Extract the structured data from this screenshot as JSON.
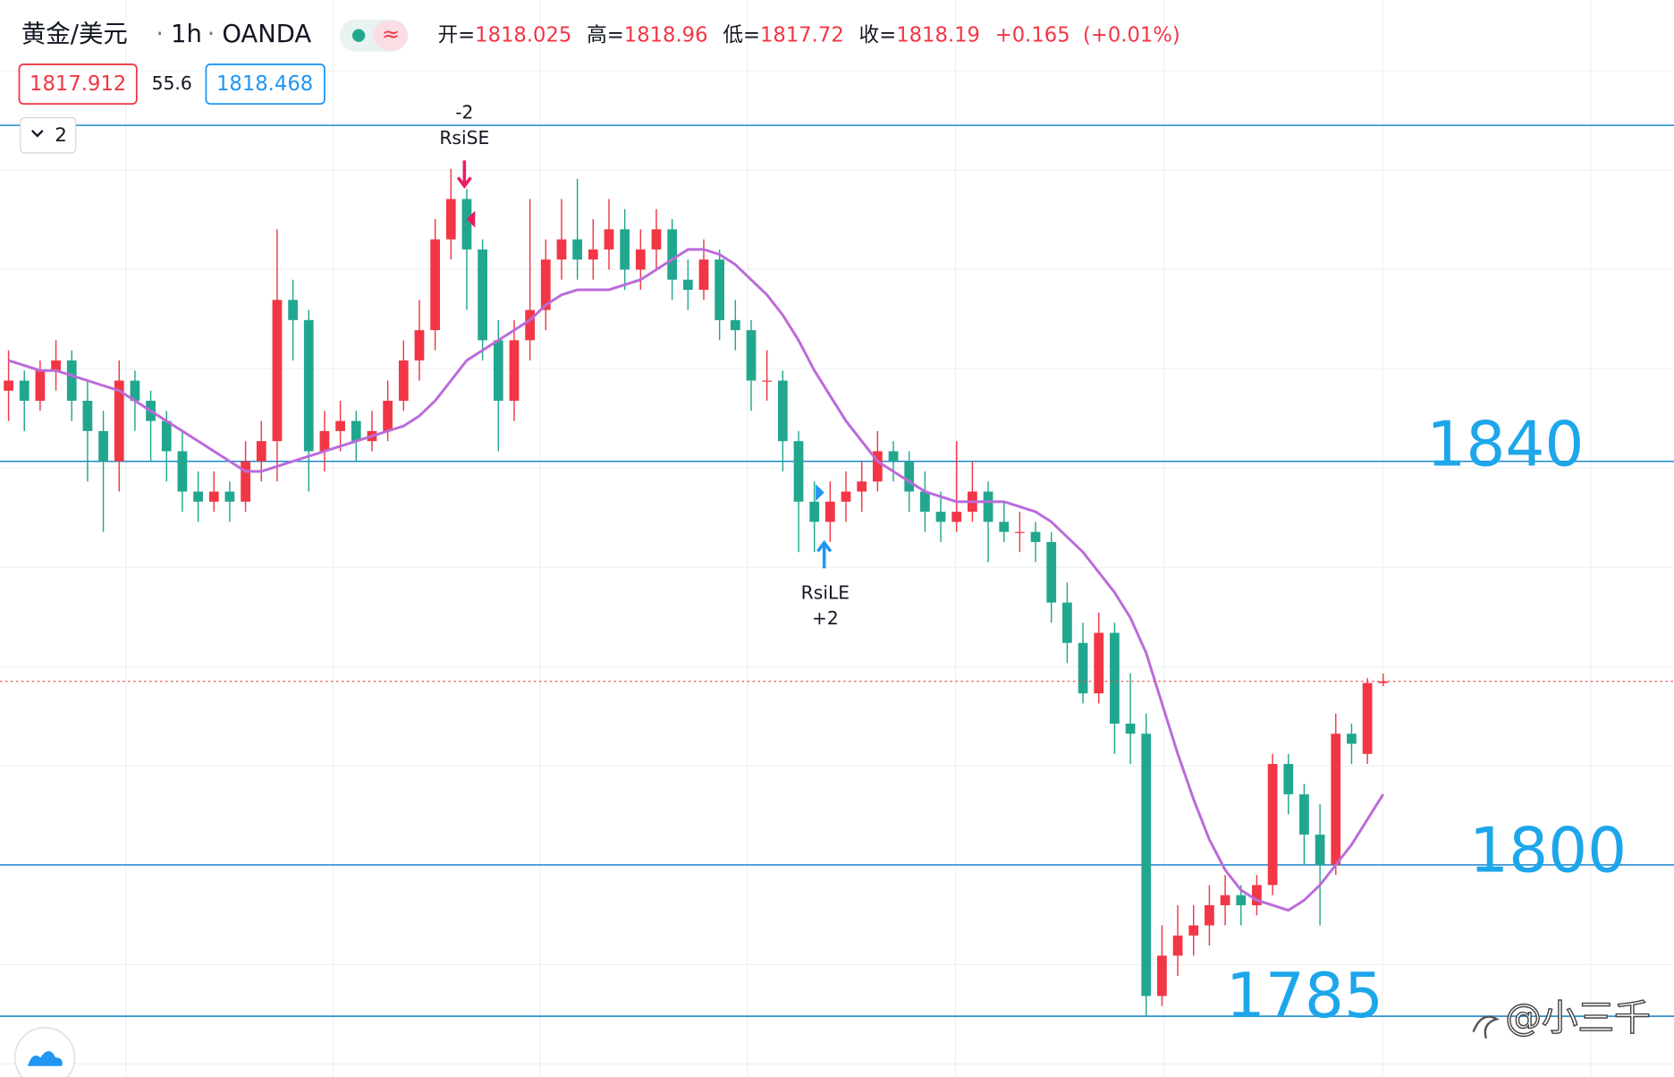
{
  "header": {
    "symbol": "黄金/美元",
    "interval": "1h",
    "source": "OANDA",
    "open_label": "开=",
    "high_label": "高=",
    "low_label": "低=",
    "close_label": "收=",
    "change": "+0.165",
    "change_pct": "(+0.01%)",
    "bid": "1817.912",
    "spread": "55.6",
    "ask": "1818.468",
    "button": "2"
  },
  "chart_data": {
    "type": "candlestick",
    "up_color": "#f23645",
    "down_color": "#22a78f",
    "ma_color": "#bb6bd9",
    "level_color": "#1e88c8",
    "ylim": [
      1779,
      1885.7
    ],
    "candles": [
      [
        1847,
        1851,
        1844,
        1848
      ],
      [
        1848,
        1849,
        1843,
        1846
      ],
      [
        1846,
        1850,
        1845,
        1849
      ],
      [
        1849,
        1852,
        1847,
        1850
      ],
      [
        1850,
        1851,
        1844,
        1846
      ],
      [
        1846,
        1848,
        1838,
        1843
      ],
      [
        1843,
        1845,
        1833,
        1840
      ],
      [
        1840,
        1850,
        1837,
        1848
      ],
      [
        1848,
        1849,
        1843,
        1846
      ],
      [
        1846,
        1847,
        1840,
        1844
      ],
      [
        1844,
        1845,
        1838,
        1841
      ],
      [
        1841,
        1843,
        1835,
        1837
      ],
      [
        1837,
        1839,
        1834,
        1836
      ],
      [
        1836,
        1839,
        1835,
        1837
      ],
      [
        1837,
        1838,
        1834,
        1836
      ],
      [
        1836,
        1842,
        1835,
        1840
      ],
      [
        1840,
        1844,
        1838,
        1842
      ],
      [
        1842,
        1863,
        1838,
        1856
      ],
      [
        1856,
        1858,
        1850,
        1854
      ],
      [
        1854,
        1855,
        1837,
        1841
      ],
      [
        1841,
        1845,
        1839,
        1843
      ],
      [
        1843,
        1846,
        1841,
        1844
      ],
      [
        1844,
        1845,
        1840,
        1842
      ],
      [
        1842,
        1845,
        1841,
        1843
      ],
      [
        1843,
        1848,
        1842,
        1846
      ],
      [
        1846,
        1852,
        1845,
        1850
      ],
      [
        1850,
        1856,
        1848,
        1853
      ],
      [
        1853,
        1864,
        1851,
        1862
      ],
      [
        1862,
        1869,
        1860,
        1866
      ],
      [
        1866,
        1867,
        1855,
        1861
      ],
      [
        1861,
        1862,
        1850,
        1852
      ],
      [
        1852,
        1854,
        1841,
        1846
      ],
      [
        1846,
        1854,
        1844,
        1852
      ],
      [
        1852,
        1866,
        1850,
        1855
      ],
      [
        1855,
        1862,
        1853,
        1860
      ],
      [
        1860,
        1866,
        1858,
        1862
      ],
      [
        1862,
        1868,
        1858,
        1860
      ],
      [
        1860,
        1864,
        1858,
        1861
      ],
      [
        1861,
        1866,
        1859,
        1863
      ],
      [
        1863,
        1865,
        1857,
        1859
      ],
      [
        1859,
        1863,
        1857,
        1861
      ],
      [
        1861,
        1865,
        1859,
        1863
      ],
      [
        1863,
        1864,
        1856,
        1858
      ],
      [
        1858,
        1860,
        1855,
        1857
      ],
      [
        1857,
        1862,
        1856,
        1860
      ],
      [
        1860,
        1861,
        1852,
        1854
      ],
      [
        1854,
        1856,
        1851,
        1853
      ],
      [
        1853,
        1854,
        1845,
        1848
      ],
      [
        1848,
        1851,
        1846,
        1848
      ],
      [
        1848,
        1849,
        1839,
        1842
      ],
      [
        1842,
        1843,
        1831,
        1836
      ],
      [
        1836,
        1838,
        1831,
        1834
      ],
      [
        1834,
        1838,
        1832,
        1836
      ],
      [
        1836,
        1839,
        1834,
        1837
      ],
      [
        1837,
        1840,
        1835,
        1838
      ],
      [
        1838,
        1843,
        1837,
        1841
      ],
      [
        1841,
        1842,
        1838,
        1840
      ],
      [
        1840,
        1841,
        1835,
        1837
      ],
      [
        1837,
        1839,
        1833,
        1835
      ],
      [
        1835,
        1837,
        1832,
        1834
      ],
      [
        1834,
        1842,
        1833,
        1835
      ],
      [
        1835,
        1840,
        1834,
        1837
      ],
      [
        1837,
        1838,
        1830,
        1834
      ],
      [
        1834,
        1836,
        1832,
        1833
      ],
      [
        1833,
        1835,
        1831,
        1833
      ],
      [
        1833,
        1834,
        1830,
        1832
      ],
      [
        1832,
        1833,
        1824,
        1826
      ],
      [
        1826,
        1828,
        1820,
        1822
      ],
      [
        1822,
        1824,
        1816,
        1817
      ],
      [
        1817,
        1825,
        1816,
        1823
      ],
      [
        1823,
        1824,
        1811,
        1814
      ],
      [
        1814,
        1819,
        1810,
        1813
      ],
      [
        1813,
        1815,
        1785,
        1787
      ],
      [
        1787,
        1794,
        1786,
        1791
      ],
      [
        1791,
        1796,
        1789,
        1793
      ],
      [
        1793,
        1796,
        1791,
        1794
      ],
      [
        1794,
        1798,
        1792,
        1796
      ],
      [
        1796,
        1799,
        1794,
        1797
      ],
      [
        1797,
        1798,
        1794,
        1796
      ],
      [
        1796,
        1799,
        1795,
        1798
      ],
      [
        1798,
        1811,
        1797,
        1810
      ],
      [
        1810,
        1811,
        1805,
        1807
      ],
      [
        1807,
        1808,
        1800,
        1803
      ],
      [
        1803,
        1806,
        1794,
        1800
      ],
      [
        1800,
        1815,
        1799,
        1813
      ],
      [
        1813,
        1814,
        1810,
        1812
      ],
      [
        1811,
        1818.5,
        1810,
        1818.025
      ],
      [
        1818.025,
        1818.96,
        1817.72,
        1818.19
      ]
    ],
    "ma": [
      1850,
      1849.5,
      1849,
      1849,
      1848.5,
      1848,
      1847.5,
      1847,
      1846,
      1845,
      1844,
      1843,
      1842,
      1841,
      1840,
      1839,
      1839,
      1839.5,
      1840,
      1840.5,
      1841,
      1841.5,
      1842,
      1842.5,
      1843,
      1843.5,
      1844.5,
      1846,
      1848,
      1850,
      1851,
      1852,
      1853,
      1854,
      1855.5,
      1856.5,
      1857,
      1857,
      1857,
      1857.5,
      1858,
      1859,
      1860,
      1861,
      1861,
      1860.5,
      1859.5,
      1858,
      1856.5,
      1854.5,
      1852,
      1849,
      1846.5,
      1844,
      1842,
      1840,
      1839,
      1838,
      1837,
      1836.5,
      1836,
      1836,
      1836,
      1836,
      1835.5,
      1835,
      1834,
      1832.5,
      1831,
      1829,
      1827,
      1824.5,
      1821,
      1816,
      1811,
      1806.5,
      1802.5,
      1799.5,
      1797.5,
      1796.5,
      1796,
      1795.5,
      1796.5,
      1798,
      1800,
      1802,
      1804.5,
      1807
    ],
    "levels": [
      1873.3,
      1840,
      1800,
      1785
    ],
    "signals": [
      {
        "qty": "-2",
        "label": "RsiSE"
      },
      {
        "label": "RsiLE",
        "qty": "+2"
      }
    ]
  },
  "watermark": "@小三千"
}
